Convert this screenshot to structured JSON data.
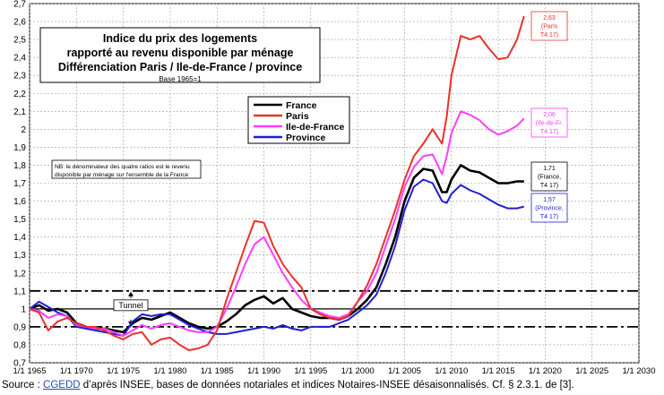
{
  "chart_data": {
    "type": "line",
    "title_lines": [
      "Indice du prix des logements",
      "rapporté au revenu disponible par ménage",
      "Différenciation Paris / Ile-de-France / province"
    ],
    "subtitle": "Base 1965=1",
    "ylim": [
      0.7,
      2.7
    ],
    "yticks": [
      "0,7",
      "0,8",
      "0,9",
      "1",
      "1,1",
      "1,2",
      "1,3",
      "1,4",
      "1,5",
      "1,6",
      "1,7",
      "1,8",
      "1,9",
      "2",
      "2,1",
      "2,2",
      "2,3",
      "2,4",
      "2,5",
      "2,6",
      "2,7"
    ],
    "xlim": [
      1965,
      2030
    ],
    "xticks": [
      "1/1 1965",
      "1/1 1970",
      "1/1 1975",
      "1/1 1980",
      "1/1 1985",
      "1/1 1990",
      "1/1 1995",
      "1/1 2000",
      "1/1 2005",
      "1/1 2010",
      "1/1 2015",
      "1/1 2020",
      "1/1 2025",
      "1/1 2030"
    ],
    "grid": true,
    "legend_placement": "top-center",
    "reference_lines": [
      1.1,
      1.0,
      0.9
    ],
    "tunnel_label": "Tunnel",
    "note": "NB: le dénominateur des quatre ratios est le revenu disponible par ménage sur l'ensemble de la France",
    "series": [
      {
        "name": "France",
        "color": "#000000",
        "x": [
          1965,
          1966,
          1967,
          1968,
          1969,
          1970,
          1971,
          1972,
          1973,
          1974,
          1975,
          1976,
          1977,
          1978,
          1979,
          1980,
          1981,
          1982,
          1983,
          1984,
          1985,
          1986,
          1987,
          1988,
          1989,
          1990,
          1991,
          1992,
          1993,
          1994,
          1995,
          1996,
          1997,
          1998,
          1999,
          2000,
          2001,
          2002,
          2003,
          2004,
          2005,
          2006,
          2007,
          2008,
          2009,
          2009.5,
          2010,
          2011,
          2012,
          2013,
          2014,
          2015,
          2016,
          2017,
          2017.75
        ],
        "y": [
          1.0,
          1.02,
          0.99,
          1.0,
          0.98,
          0.92,
          0.9,
          0.89,
          0.89,
          0.88,
          0.87,
          0.92,
          0.95,
          0.94,
          0.96,
          0.98,
          0.95,
          0.92,
          0.9,
          0.89,
          0.9,
          0.93,
          0.97,
          1.02,
          1.05,
          1.07,
          1.03,
          1.06,
          1.0,
          0.98,
          0.96,
          0.95,
          0.95,
          0.94,
          0.96,
          1.0,
          1.05,
          1.12,
          1.25,
          1.4,
          1.6,
          1.73,
          1.78,
          1.77,
          1.65,
          1.65,
          1.72,
          1.8,
          1.77,
          1.76,
          1.73,
          1.7,
          1.7,
          1.71,
          1.71
        ]
      },
      {
        "name": "Paris",
        "color": "#e8322b",
        "x": [
          1965,
          1966,
          1967,
          1968,
          1969,
          1970,
          1971,
          1972,
          1973,
          1974,
          1975,
          1976,
          1977,
          1978,
          1979,
          1980,
          1981,
          1982,
          1983,
          1984,
          1985,
          1986,
          1987,
          1988,
          1989,
          1990,
          1991,
          1992,
          1993,
          1994,
          1995,
          1996,
          1997,
          1998,
          1999,
          2000,
          2001,
          2002,
          2003,
          2004,
          2005,
          2006,
          2007,
          2008,
          2009,
          2009.5,
          2010,
          2011,
          2012,
          2013,
          2014,
          2015,
          2016,
          2017,
          2017.75
        ],
        "y": [
          1.0,
          0.98,
          0.88,
          0.93,
          0.95,
          0.92,
          0.9,
          0.9,
          0.88,
          0.85,
          0.83,
          0.86,
          0.87,
          0.8,
          0.83,
          0.84,
          0.8,
          0.77,
          0.78,
          0.8,
          0.88,
          1.05,
          1.2,
          1.35,
          1.49,
          1.48,
          1.35,
          1.25,
          1.18,
          1.12,
          1.0,
          0.97,
          0.95,
          0.94,
          0.96,
          1.04,
          1.13,
          1.25,
          1.4,
          1.55,
          1.72,
          1.85,
          1.92,
          2.0,
          1.92,
          2.07,
          2.3,
          2.52,
          2.5,
          2.52,
          2.45,
          2.39,
          2.4,
          2.5,
          2.63
        ]
      },
      {
        "name": "Ile-de-France",
        "color": "#ff3dff",
        "x": [
          1965,
          1966,
          1967,
          1968,
          1969,
          1970,
          1971,
          1972,
          1973,
          1974,
          1975,
          1976,
          1977,
          1978,
          1979,
          1980,
          1981,
          1982,
          1983,
          1984,
          1985,
          1986,
          1987,
          1988,
          1989,
          1990,
          1991,
          1992,
          1993,
          1994,
          1995,
          1996,
          1997,
          1998,
          1999,
          2000,
          2001,
          2002,
          2003,
          2004,
          2005,
          2006,
          2007,
          2008,
          2009,
          2009.5,
          2010,
          2011,
          2012,
          2013,
          2014,
          2015,
          2016,
          2017,
          2017.75
        ],
        "y": [
          1.0,
          0.99,
          0.95,
          0.97,
          0.96,
          0.91,
          0.9,
          0.89,
          0.89,
          0.87,
          0.85,
          0.88,
          0.91,
          0.89,
          0.91,
          0.92,
          0.9,
          0.88,
          0.87,
          0.87,
          0.9,
          1.0,
          1.12,
          1.25,
          1.36,
          1.4,
          1.3,
          1.2,
          1.12,
          1.05,
          1.0,
          0.98,
          0.96,
          0.95,
          0.97,
          1.04,
          1.1,
          1.2,
          1.35,
          1.5,
          1.68,
          1.79,
          1.85,
          1.86,
          1.75,
          1.85,
          1.98,
          2.1,
          2.08,
          2.05,
          2.0,
          1.97,
          1.99,
          2.02,
          2.06
        ]
      },
      {
        "name": "Province",
        "color": "#1f1fd6",
        "x": [
          1965,
          1966,
          1967,
          1968,
          1969,
          1970,
          1971,
          1972,
          1973,
          1974,
          1975,
          1976,
          1977,
          1978,
          1979,
          1980,
          1981,
          1982,
          1983,
          1984,
          1985,
          1986,
          1987,
          1988,
          1989,
          1990,
          1991,
          1992,
          1993,
          1994,
          1995,
          1996,
          1997,
          1998,
          1999,
          2000,
          2001,
          2002,
          2003,
          2004,
          2005,
          2006,
          2007,
          2008,
          2009,
          2009.5,
          2010,
          2011,
          2012,
          2013,
          2014,
          2015,
          2016,
          2017,
          2017.75
        ],
        "y": [
          1.0,
          1.04,
          1.01,
          0.98,
          0.96,
          0.9,
          0.89,
          0.88,
          0.87,
          0.86,
          0.85,
          0.93,
          0.97,
          0.96,
          0.97,
          0.97,
          0.94,
          0.91,
          0.89,
          0.87,
          0.86,
          0.86,
          0.87,
          0.88,
          0.89,
          0.9,
          0.89,
          0.91,
          0.89,
          0.88,
          0.9,
          0.9,
          0.9,
          0.92,
          0.94,
          0.98,
          1.02,
          1.08,
          1.2,
          1.35,
          1.55,
          1.68,
          1.72,
          1.7,
          1.6,
          1.59,
          1.64,
          1.69,
          1.66,
          1.64,
          1.61,
          1.58,
          1.56,
          1.56,
          1.57
        ]
      }
    ],
    "end_labels": [
      {
        "series": "Paris",
        "lines": [
          "2,63",
          "(Paris",
          "T4 17)"
        ]
      },
      {
        "series": "Ile-de-France",
        "lines": [
          "2,06",
          "(Ile-de-Fr.",
          "T4 17)"
        ]
      },
      {
        "series": "France",
        "lines": [
          "1,71",
          "(France,",
          "T4 17)"
        ]
      },
      {
        "series": "Province",
        "lines": [
          "1,57",
          "(Province,",
          "T4 17)"
        ]
      }
    ]
  },
  "source": {
    "prefix": "Source : ",
    "link": "CGEDD",
    "suffix": " d’après INSEE, bases de données notariales et indices Notaires-INSEE désaisonnalisés.  Cf. § 2.3.1. de [3]."
  }
}
